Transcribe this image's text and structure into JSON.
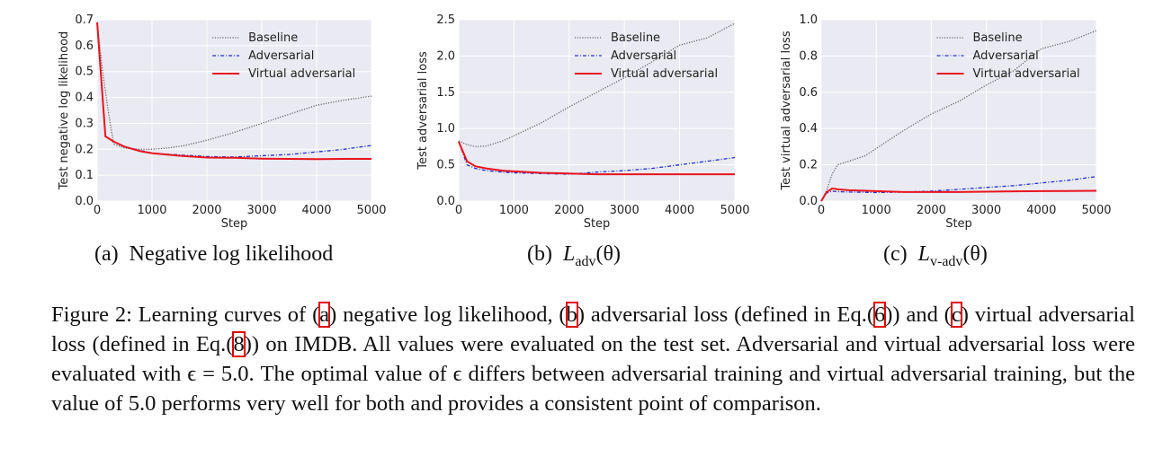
{
  "chart_data": [
    {
      "type": "line",
      "xlabel": "Step",
      "ylabel": "Test negative log likelihood",
      "xlim": [
        0,
        5000
      ],
      "ylim": [
        0.0,
        0.7
      ],
      "xticks": [
        "0",
        "1000",
        "2000",
        "3000",
        "4000",
        "5000"
      ],
      "xtick_values": [
        0,
        1000,
        2000,
        3000,
        4000,
        5000
      ],
      "yticks": [
        "0.0",
        "0.1",
        "0.2",
        "0.3",
        "0.4",
        "0.5",
        "0.6",
        "0.7"
      ],
      "ytick_values": [
        0,
        0.1,
        0.2,
        0.3,
        0.4,
        0.5,
        0.6,
        0.7
      ],
      "grid": true,
      "legend_position": "top-right",
      "series": [
        {
          "name": "Baseline",
          "color": "#666666",
          "style": "dotted",
          "x": [
            0,
            100,
            200,
            300,
            500,
            700,
            1000,
            1300,
            1600,
            2000,
            2500,
            3000,
            3500,
            4000,
            4500,
            5000
          ],
          "y": [
            0.69,
            0.5,
            0.35,
            0.22,
            0.205,
            0.2,
            0.2,
            0.205,
            0.215,
            0.235,
            0.265,
            0.3,
            0.335,
            0.37,
            0.39,
            0.405
          ]
        },
        {
          "name": "Adversarial",
          "color": "#1f2fd0",
          "style": "dashdot",
          "x": [
            0,
            150,
            300,
            500,
            800,
            1000,
            1500,
            2000,
            2500,
            3000,
            3500,
            4000,
            4500,
            5000
          ],
          "y": [
            0.69,
            0.25,
            0.23,
            0.21,
            0.195,
            0.185,
            0.178,
            0.172,
            0.17,
            0.175,
            0.18,
            0.19,
            0.2,
            0.215
          ]
        },
        {
          "name": "Virtual adversarial",
          "color": "#e8141e",
          "style": "solid",
          "x": [
            0,
            150,
            300,
            500,
            800,
            1000,
            1500,
            2000,
            2500,
            3000,
            3500,
            4000,
            4500,
            5000
          ],
          "y": [
            0.69,
            0.25,
            0.23,
            0.21,
            0.192,
            0.185,
            0.175,
            0.168,
            0.167,
            0.164,
            0.163,
            0.162,
            0.163,
            0.163
          ]
        }
      ]
    },
    {
      "type": "line",
      "xlabel": "Step",
      "ylabel": "Test adversarial loss",
      "xlim": [
        0,
        5000
      ],
      "ylim": [
        0.0,
        2.5
      ],
      "xticks": [
        "0",
        "1000",
        "2000",
        "3000",
        "4000",
        "5000"
      ],
      "xtick_values": [
        0,
        1000,
        2000,
        3000,
        4000,
        5000
      ],
      "yticks": [
        "0.0",
        "0.5",
        "1.0",
        "1.5",
        "2.0",
        "2.5"
      ],
      "ytick_values": [
        0,
        0.5,
        1.0,
        1.5,
        2.0,
        2.5
      ],
      "grid": true,
      "legend_position": "top-right",
      "series": [
        {
          "name": "Baseline",
          "color": "#666666",
          "style": "dotted",
          "x": [
            0,
            150,
            300,
            500,
            800,
            1000,
            1500,
            2000,
            2500,
            3000,
            3500,
            4000,
            4500,
            5000
          ],
          "y": [
            0.83,
            0.78,
            0.75,
            0.76,
            0.83,
            0.9,
            1.08,
            1.3,
            1.5,
            1.7,
            1.92,
            2.15,
            2.25,
            2.45
          ]
        },
        {
          "name": "Adversarial",
          "color": "#1f2fd0",
          "style": "dashdot",
          "x": [
            0,
            150,
            300,
            500,
            800,
            1000,
            1500,
            2000,
            2500,
            3000,
            3500,
            4000,
            4500,
            5000
          ],
          "y": [
            0.82,
            0.5,
            0.45,
            0.42,
            0.4,
            0.39,
            0.38,
            0.37,
            0.4,
            0.42,
            0.45,
            0.5,
            0.55,
            0.6
          ]
        },
        {
          "name": "Virtual adversarial",
          "color": "#e8141e",
          "style": "solid",
          "x": [
            0,
            150,
            300,
            500,
            800,
            1000,
            1500,
            2000,
            2500,
            3000,
            3500,
            4000,
            4500,
            5000
          ],
          "y": [
            0.82,
            0.55,
            0.48,
            0.45,
            0.42,
            0.41,
            0.39,
            0.38,
            0.37,
            0.37,
            0.37,
            0.37,
            0.37,
            0.37
          ]
        }
      ]
    },
    {
      "type": "line",
      "xlabel": "Step",
      "ylabel": "Test virtual adversarial loss",
      "xlim": [
        0,
        5000
      ],
      "ylim": [
        0.0,
        1.0
      ],
      "xticks": [
        "0",
        "1000",
        "2000",
        "3000",
        "4000",
        "5000"
      ],
      "xtick_values": [
        0,
        1000,
        2000,
        3000,
        4000,
        5000
      ],
      "yticks": [
        "0.0",
        "0.2",
        "0.4",
        "0.6",
        "0.8",
        "1.0"
      ],
      "ytick_values": [
        0,
        0.2,
        0.4,
        0.6,
        0.8,
        1.0
      ],
      "grid": true,
      "legend_position": "top-right",
      "series": [
        {
          "name": "Baseline",
          "color": "#666666",
          "style": "dotted",
          "x": [
            0,
            100,
            200,
            300,
            500,
            800,
            1000,
            1500,
            2000,
            2500,
            3000,
            3500,
            4000,
            4500,
            5000
          ],
          "y": [
            0.0,
            0.06,
            0.15,
            0.2,
            0.22,
            0.25,
            0.29,
            0.39,
            0.48,
            0.55,
            0.64,
            0.72,
            0.84,
            0.88,
            0.94
          ]
        },
        {
          "name": "Adversarial",
          "color": "#1f2fd0",
          "style": "dashdot",
          "x": [
            0,
            100,
            200,
            300,
            500,
            1000,
            1500,
            2000,
            2500,
            3000,
            3500,
            4000,
            4500,
            5000
          ],
          "y": [
            0.0,
            0.045,
            0.055,
            0.052,
            0.05,
            0.047,
            0.05,
            0.055,
            0.065,
            0.075,
            0.085,
            0.1,
            0.115,
            0.135
          ]
        },
        {
          "name": "Virtual adversarial",
          "color": "#e8141e",
          "style": "solid",
          "x": [
            0,
            100,
            200,
            300,
            500,
            1000,
            1500,
            2000,
            2500,
            3000,
            3500,
            4000,
            4500,
            5000
          ],
          "y": [
            0.0,
            0.05,
            0.07,
            0.065,
            0.06,
            0.055,
            0.05,
            0.05,
            0.05,
            0.052,
            0.054,
            0.055,
            0.056,
            0.057
          ]
        }
      ]
    }
  ],
  "subcaptions": [
    {
      "label": "(a)",
      "text": "Negative log likelihood"
    },
    {
      "label": "(b)",
      "math": "L",
      "sub": "adv",
      "arg": "(θ)"
    },
    {
      "label": "(c)",
      "math": "L",
      "sub": "v-adv",
      "arg": "(θ)"
    }
  ],
  "caption": {
    "prefix": "Figure 2:  Learning curves of ",
    "ref_a": "a",
    "t1": ") negative log likelihood,  (",
    "ref_b": "b",
    "t2": ") adversarial loss (defined in Eq.(",
    "ref_eq6": "6",
    "t3": "))",
    "t4": "and (",
    "ref_c": "c",
    "t5": ") virtual adversarial loss (defined in Eq.(",
    "ref_eq8": "8",
    "t6": ")) on IMDB. All values were evaluated on the test set.  Adversarial and virtual adversarial loss were evaluated with ϵ = 5.0.  The optimal value of ϵ differs between adversarial training and virtual adversarial training, but the value of 5.0 performs very well for both and provides a consistent point of comparison."
  }
}
